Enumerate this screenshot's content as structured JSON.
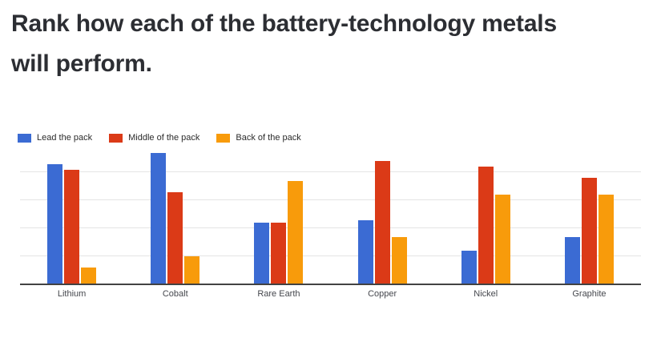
{
  "chart_data": {
    "type": "bar",
    "title": "Rank how each of the battery-technology metals will perform.",
    "xlabel": "",
    "ylabel": "",
    "categories": [
      "Lithium",
      "Cobalt",
      "Rare Earth",
      "Copper",
      "Nickel",
      "Graphite"
    ],
    "series": [
      {
        "name": "Lead the pack",
        "color": "#3B6BD3",
        "values": [
          43,
          47,
          22,
          23,
          12,
          17
        ]
      },
      {
        "name": "Middle of the pack",
        "color": "#DB3A17",
        "values": [
          41,
          33,
          22,
          44,
          42,
          38
        ]
      },
      {
        "name": "Back of the pack",
        "color": "#F89B0B",
        "values": [
          6,
          10,
          37,
          17,
          32,
          32
        ]
      }
    ],
    "ylim": [
      0,
      50
    ],
    "gridline_interval": 10,
    "y_axis_labels_visible": false,
    "grid": true,
    "legend_position": "top"
  },
  "style": {
    "title_color": "#2c2e33",
    "legend_text_color": "#2b2b2b",
    "axis_line_color": "#424242",
    "gridline_color": "#e4e4e4",
    "category_label_color": "#45474d",
    "background_color": "#ffffff"
  }
}
